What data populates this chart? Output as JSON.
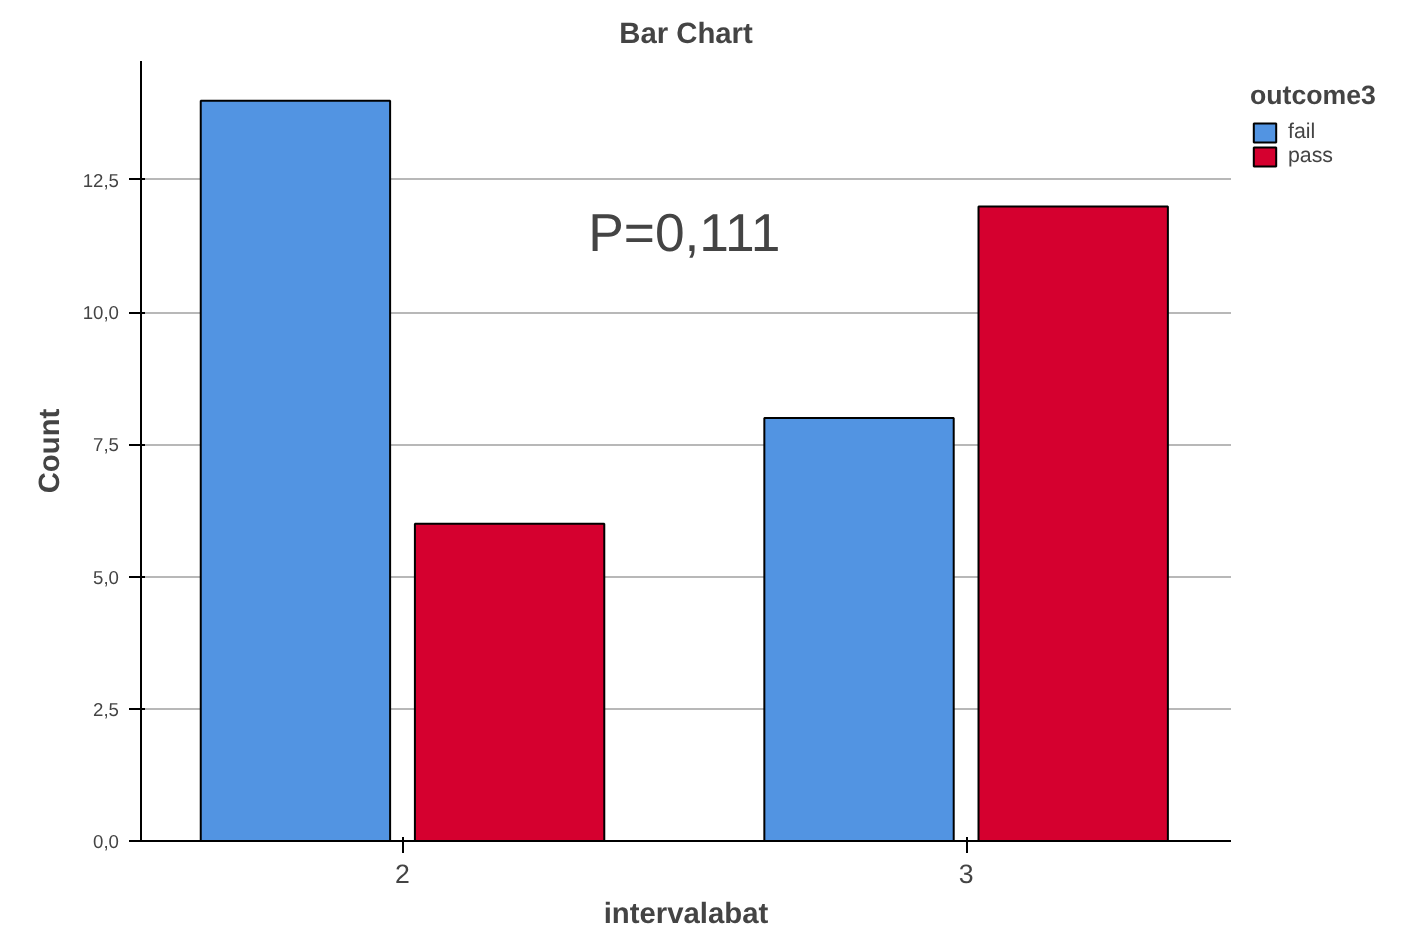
{
  "chart_data": {
    "type": "bar",
    "title": "Bar Chart",
    "xlabel": "intervalabat",
    "ylabel": "Count",
    "legend_title": "outcome3",
    "categories": [
      "2",
      "3"
    ],
    "series": [
      {
        "name": "fail",
        "color": "#5294e2",
        "values": [
          14,
          8
        ]
      },
      {
        "name": "pass",
        "color": "#d5002f",
        "values": [
          6,
          12
        ]
      }
    ],
    "ylim": [
      0,
      14.75
    ],
    "yticks": [
      {
        "value": 0,
        "label": "0,0"
      },
      {
        "value": 2.5,
        "label": "2,5"
      },
      {
        "value": 5,
        "label": "5,0"
      },
      {
        "value": 7.5,
        "label": "7,5"
      },
      {
        "value": 10,
        "label": "10,0"
      },
      {
        "value": 12.5,
        "label": "12,5"
      }
    ],
    "grid": "y",
    "legend": "top right",
    "annotations": [
      "P=0,111"
    ]
  }
}
